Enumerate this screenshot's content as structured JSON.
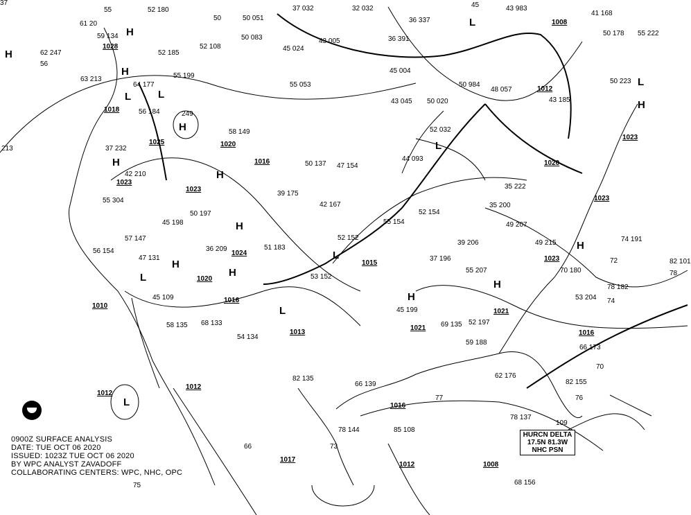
{
  "info": {
    "line1": "0900Z SURFACE ANALYSIS",
    "line2": "DATE: TUE OCT 06 2020",
    "line3": "ISSUED: 1023Z TUE OCT 06 2020",
    "line4": "BY WPC ANALYST ZAVADOFF",
    "line5": "COLLABORATING CENTERS: WPC, NHC, OPC"
  },
  "hurricane": {
    "line1": "HURCN DELTA",
    "line2": "17.5N 81.3W",
    "line3": "NHC PSN"
  },
  "isobars": [
    "1028",
    "1018",
    "1025",
    "1023",
    "1020",
    "1016",
    "1023",
    "1024",
    "1020",
    "1015",
    "1013",
    "1010",
    "1016",
    "1021",
    "1021",
    "1012",
    "1012",
    "1012",
    "1017",
    "1016",
    "1012",
    "1008",
    "1008",
    "1020",
    "1023",
    "1023",
    "1016",
    "1023"
  ],
  "centers": [
    "H",
    "H",
    "H",
    "L",
    "H",
    "H",
    "H",
    "H",
    "H",
    "L",
    "L",
    "H",
    "L",
    "L",
    "L",
    "H",
    "H",
    "L",
    "H",
    "L",
    "L",
    "H"
  ],
  "stations": [
    "55",
    "52 180",
    "61 20",
    "59 134",
    "50",
    "50 051",
    "37 032",
    "32 032",
    "36 337",
    "45",
    "43 983",
    "41 168",
    "62 247",
    "56",
    "52 185",
    "52 108",
    "50 083",
    "43 005",
    "36 391",
    "45 024",
    "50 178",
    "55 222",
    "63 213",
    "55 199",
    "64 177",
    "55 053",
    "45 004",
    "50 984",
    "48 057",
    "43 185",
    "50 223",
    "56 184",
    "249",
    "58 149",
    "43 045",
    "50 020",
    "52 032",
    "213",
    "37 232",
    "42 210",
    "50 137",
    "47 154",
    "44 093",
    "39 175",
    "52 154",
    "35 222",
    "35 200",
    "74 191",
    "55 304",
    "45 198",
    "50 197",
    "42 167",
    "55 154",
    "49 207",
    "49 215",
    "57 147",
    "36 209",
    "51 183",
    "52 152",
    "37 196",
    "39 206",
    "78 182",
    "56 154",
    "47 131",
    "45 109",
    "53 152",
    "45 199",
    "55 207",
    "53 204",
    "70 180",
    "58 135",
    "68 133",
    "54 134",
    "69 135",
    "52 197",
    "59 188",
    "66 173",
    "82 155",
    "82 135",
    "66 139",
    "62 176",
    "78 137",
    "109",
    "85 108",
    "78 144",
    "68 156",
    "82 101",
    "78",
    "72",
    "74",
    "70",
    "75",
    "76",
    "77",
    "73",
    "66",
    "37"
  ],
  "colors": {
    "ink": "#000000",
    "background": "#ffffff"
  }
}
